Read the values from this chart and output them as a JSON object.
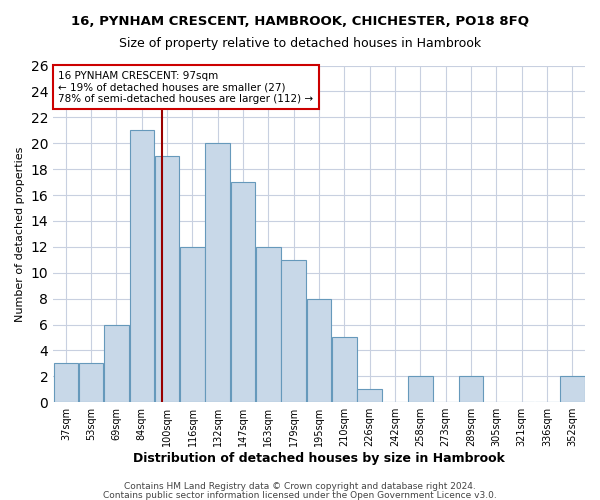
{
  "title": "16, PYNHAM CRESCENT, HAMBROOK, CHICHESTER, PO18 8FQ",
  "subtitle": "Size of property relative to detached houses in Hambrook",
  "xlabel": "Distribution of detached houses by size in Hambrook",
  "ylabel": "Number of detached properties",
  "bin_labels": [
    "37sqm",
    "53sqm",
    "69sqm",
    "84sqm",
    "100sqm",
    "116sqm",
    "132sqm",
    "147sqm",
    "163sqm",
    "179sqm",
    "195sqm",
    "210sqm",
    "226sqm",
    "242sqm",
    "258sqm",
    "273sqm",
    "289sqm",
    "305sqm",
    "321sqm",
    "336sqm",
    "352sqm"
  ],
  "values": [
    3,
    3,
    6,
    21,
    19,
    12,
    20,
    17,
    12,
    11,
    8,
    5,
    1,
    0,
    2,
    0,
    2,
    0,
    0,
    0,
    2
  ],
  "bar_color": "#c8d8e8",
  "bar_edge_color": "#6699bb",
  "grid_color": "#c8d0e0",
  "vline_color": "#990000",
  "vline_position": 3.6,
  "ylim": [
    0,
    26
  ],
  "yticks": [
    0,
    2,
    4,
    6,
    8,
    10,
    12,
    14,
    16,
    18,
    20,
    22,
    24,
    26
  ],
  "property_label": "16 PYNHAM CRESCENT: 97sqm",
  "annotation_line1": "← 19% of detached houses are smaller (27)",
  "annotation_line2": "78% of semi-detached houses are larger (112) →",
  "footer1": "Contains HM Land Registry data © Crown copyright and database right 2024.",
  "footer2": "Contains public sector information licensed under the Open Government Licence v3.0.",
  "title_fontsize": 9.5,
  "subtitle_fontsize": 9,
  "ylabel_fontsize": 8,
  "xlabel_fontsize": 9,
  "tick_fontsize": 7,
  "ann_fontsize": 7.5,
  "footer_fontsize": 6.5
}
